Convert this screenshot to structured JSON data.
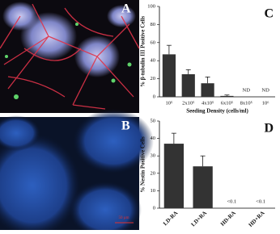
{
  "panels": {
    "a": "A",
    "b": "B"
  },
  "scale_bar": "50 µm",
  "chart_data": [
    {
      "type": "bar",
      "panel_label": "C",
      "ylabel": "% β-tubulin III Positive Cells",
      "xlabel": "Seeding Density (cells/ml)",
      "categories": [
        "10⁵",
        "2x10⁵",
        "4x10⁵",
        "6x10⁵",
        "8x10⁵",
        "10⁶"
      ],
      "values": [
        47,
        25,
        15,
        1,
        null,
        null
      ],
      "errors": [
        10,
        5,
        7,
        1,
        null,
        null
      ],
      "value_labels": [
        null,
        null,
        null,
        null,
        "ND",
        "ND"
      ],
      "color": "#333333",
      "ylim": [
        0,
        100
      ],
      "yticks": [
        0,
        20,
        40,
        60,
        80,
        100
      ],
      "rotate_labels": false
    },
    {
      "type": "bar",
      "panel_label": "D",
      "ylabel": "% Nestin Positive Cells",
      "categories": [
        "LD-RA",
        "LD+RA",
        "HD-RA",
        "HD+RA"
      ],
      "values": [
        37,
        24,
        null,
        null
      ],
      "errors": [
        6,
        6,
        null,
        null
      ],
      "value_labels": [
        null,
        null,
        "<0.1",
        "<0.1"
      ],
      "color": "#333333",
      "ylim": [
        0,
        50
      ],
      "yticks": [
        0,
        10,
        20,
        30,
        40,
        50
      ],
      "rotate_labels": true
    }
  ]
}
